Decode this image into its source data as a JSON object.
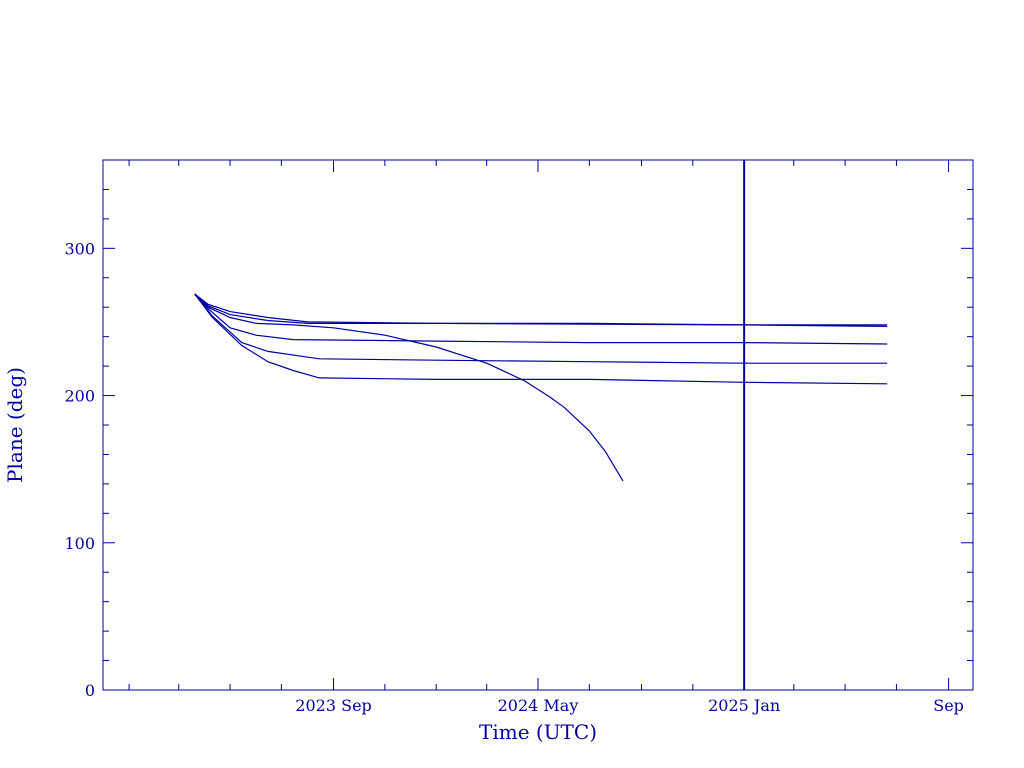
{
  "chart_data": {
    "type": "line",
    "title": "",
    "xlabel": "Time (UTC)",
    "ylabel": "Plane (deg)",
    "color": "#0000a0",
    "grid": false,
    "legend": "none",
    "xlim": [
      "2022-12-01",
      "2025-09-30"
    ],
    "ylim": [
      0,
      360
    ],
    "xticks": [
      {
        "date": "2023-09-01",
        "label": "2023 Sep"
      },
      {
        "date": "2024-05-01",
        "label": "2024 May"
      },
      {
        "date": "2025-01-01",
        "label": "2025 Jan"
      },
      {
        "date": "2025-09-01",
        "label": "Sep"
      }
    ],
    "yticks": [
      0,
      100,
      200,
      300
    ],
    "vline": {
      "date": "2025-01-01"
    },
    "series": [
      {
        "points": [
          [
            "2023-03-20",
            269
          ],
          [
            "2023-04-05",
            262
          ],
          [
            "2023-05-01",
            257
          ],
          [
            "2023-06-15",
            253
          ],
          [
            "2023-08-01",
            250
          ],
          [
            "2024-01-01",
            249
          ],
          [
            "2024-07-01",
            249
          ],
          [
            "2025-01-01",
            248
          ],
          [
            "2025-06-20",
            248
          ]
        ]
      },
      {
        "points": [
          [
            "2023-03-20",
            269
          ],
          [
            "2023-04-05",
            261
          ],
          [
            "2023-05-01",
            255
          ],
          [
            "2023-06-15",
            251
          ],
          [
            "2023-08-01",
            249
          ],
          [
            "2024-01-01",
            249
          ],
          [
            "2024-07-01",
            248.5
          ],
          [
            "2025-01-01",
            248
          ],
          [
            "2025-06-20",
            247
          ]
        ]
      },
      {
        "points": [
          [
            "2023-03-20",
            269
          ],
          [
            "2023-04-05",
            260
          ],
          [
            "2023-05-01",
            253
          ],
          [
            "2023-06-01",
            249
          ],
          [
            "2023-07-15",
            248
          ],
          [
            "2023-09-01",
            246
          ],
          [
            "2023-11-01",
            241
          ],
          [
            "2024-01-01",
            233
          ],
          [
            "2024-03-01",
            222
          ],
          [
            "2024-04-15",
            210
          ],
          [
            "2024-05-15",
            199
          ],
          [
            "2024-06-01",
            192
          ],
          [
            "2024-07-01",
            176
          ],
          [
            "2024-07-20",
            162
          ],
          [
            "2024-08-10",
            142
          ]
        ]
      },
      {
        "points": [
          [
            "2023-03-20",
            269
          ],
          [
            "2023-04-05",
            259
          ],
          [
            "2023-05-01",
            246
          ],
          [
            "2023-06-01",
            241
          ],
          [
            "2023-07-15",
            238
          ],
          [
            "2024-01-01",
            237
          ],
          [
            "2024-07-01",
            236
          ],
          [
            "2025-01-01",
            236
          ],
          [
            "2025-06-20",
            235
          ]
        ]
      },
      {
        "points": [
          [
            "2023-03-20",
            269
          ],
          [
            "2023-04-10",
            254
          ],
          [
            "2023-05-15",
            236
          ],
          [
            "2023-06-15",
            230
          ],
          [
            "2023-08-15",
            225
          ],
          [
            "2024-01-01",
            224
          ],
          [
            "2024-07-01",
            223
          ],
          [
            "2025-01-01",
            222
          ],
          [
            "2025-06-20",
            222
          ]
        ]
      },
      {
        "points": [
          [
            "2023-03-20",
            269
          ],
          [
            "2023-04-10",
            253
          ],
          [
            "2023-05-15",
            234
          ],
          [
            "2023-06-15",
            223
          ],
          [
            "2023-07-15",
            217
          ],
          [
            "2023-08-15",
            212
          ],
          [
            "2024-01-01",
            211
          ],
          [
            "2024-07-01",
            211
          ],
          [
            "2025-01-01",
            209
          ],
          [
            "2025-06-20",
            208
          ]
        ]
      }
    ]
  }
}
